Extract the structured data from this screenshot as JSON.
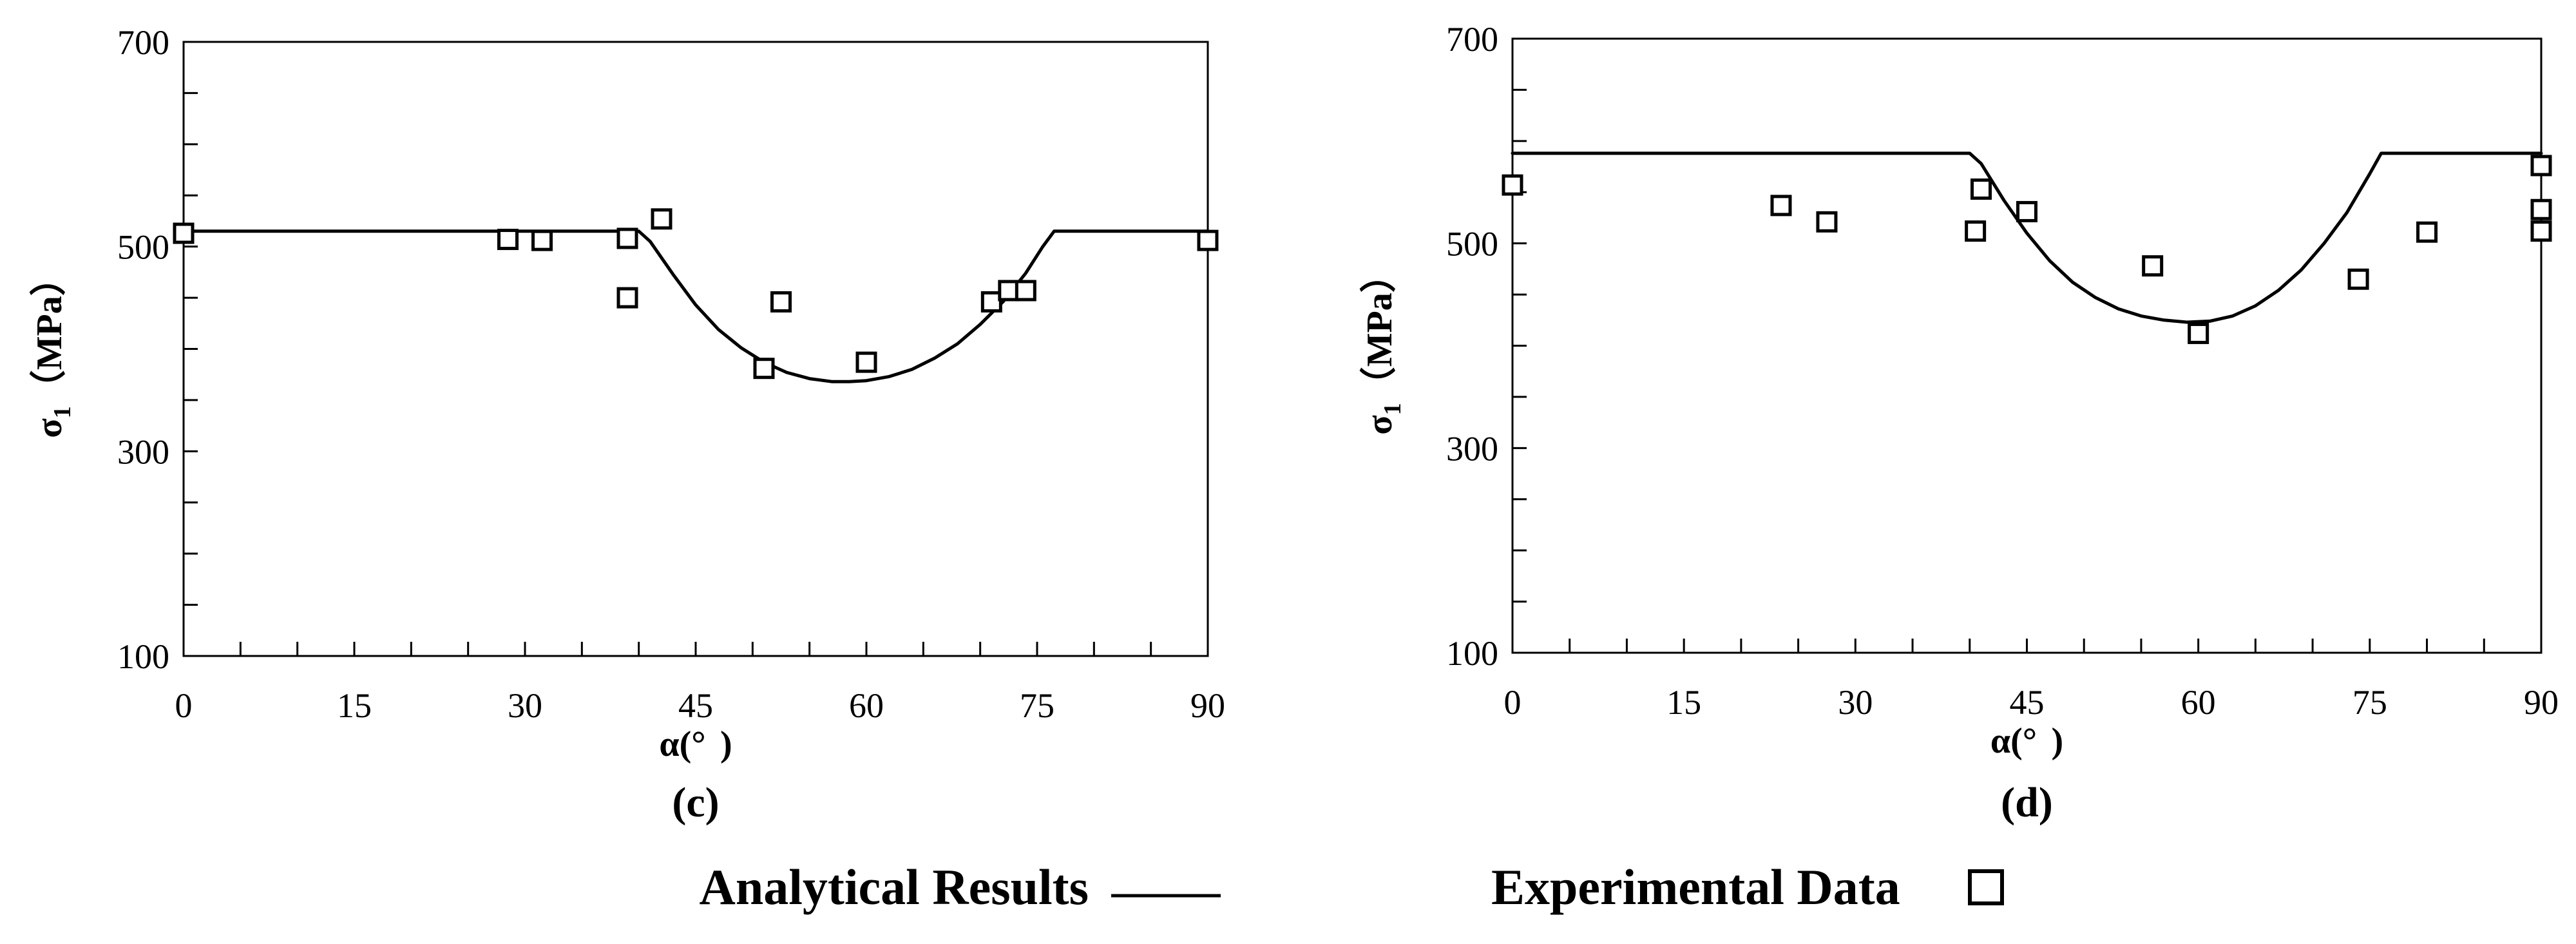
{
  "chart_data": [
    {
      "type": "line",
      "panel_label": "(c)",
      "xlabel": "α(°  )",
      "ylabel_sym": "σ",
      "ylabel_sub": "1",
      "ylabel_unit": "（MPa）",
      "xlim": [
        0,
        90
      ],
      "ylim": [
        100,
        700
      ],
      "xticks": [
        0,
        15,
        30,
        45,
        60,
        75,
        90
      ],
      "yticks": [
        100,
        300,
        500,
        700
      ],
      "y_minor_step": 50,
      "x_minor_step": 5,
      "series": [
        {
          "name": "Analytical Results",
          "kind": "line",
          "x": [
            0,
            40,
            41,
            43,
            45,
            47,
            49,
            51,
            53,
            55,
            57,
            58.5,
            60,
            62,
            64,
            66,
            68,
            70,
            72,
            74,
            75.5,
            76.5,
            90
          ],
          "y": [
            515,
            515,
            505,
            473,
            443,
            419,
            401,
            387,
            377,
            371,
            368,
            368,
            369,
            373,
            380,
            391,
            405,
            424,
            446,
            474,
            500,
            515,
            515
          ]
        },
        {
          "name": "Experimental Data",
          "kind": "scatter",
          "x": [
            0,
            28.5,
            31.5,
            39,
            39,
            42,
            51,
            52.5,
            60,
            71,
            72.5,
            74,
            90
          ],
          "y": [
            513,
            507,
            506,
            508,
            450,
            527,
            381,
            446,
            387,
            446,
            457,
            457,
            506
          ]
        }
      ]
    },
    {
      "type": "line",
      "panel_label": "(d)",
      "xlabel": "α(°  )",
      "ylabel_sym": "σ",
      "ylabel_sub": "1",
      "ylabel_unit": "（MPa）",
      "xlim": [
        0,
        90
      ],
      "ylim": [
        100,
        700
      ],
      "xticks": [
        0,
        15,
        30,
        45,
        60,
        75,
        90
      ],
      "yticks": [
        100,
        300,
        500,
        700
      ],
      "y_minor_step": 50,
      "x_minor_step": 5,
      "series": [
        {
          "name": "Analytical Results",
          "kind": "line",
          "x": [
            0,
            40,
            41,
            43,
            45,
            47,
            49,
            51,
            53,
            55,
            57,
            59,
            61,
            63,
            65,
            67,
            69,
            71,
            73,
            75,
            76,
            77,
            90
          ],
          "y": [
            588,
            588,
            578,
            542,
            510,
            483,
            462,
            447,
            436,
            429,
            425,
            423,
            424,
            429,
            439,
            454,
            474,
            500,
            530,
            568,
            588,
            588,
            588
          ]
        },
        {
          "name": "Experimental Data",
          "kind": "scatter",
          "x": [
            0,
            23.5,
            27.5,
            40.5,
            41,
            45,
            56,
            60,
            74,
            80,
            90,
            90,
            90
          ],
          "y": [
            557,
            537,
            521,
            512,
            553,
            531,
            478,
            412,
            465,
            511,
            576,
            533,
            512
          ]
        }
      ]
    }
  ],
  "legend": {
    "line_label": "Analytical Results",
    "marker_label": "Experimental Data"
  }
}
